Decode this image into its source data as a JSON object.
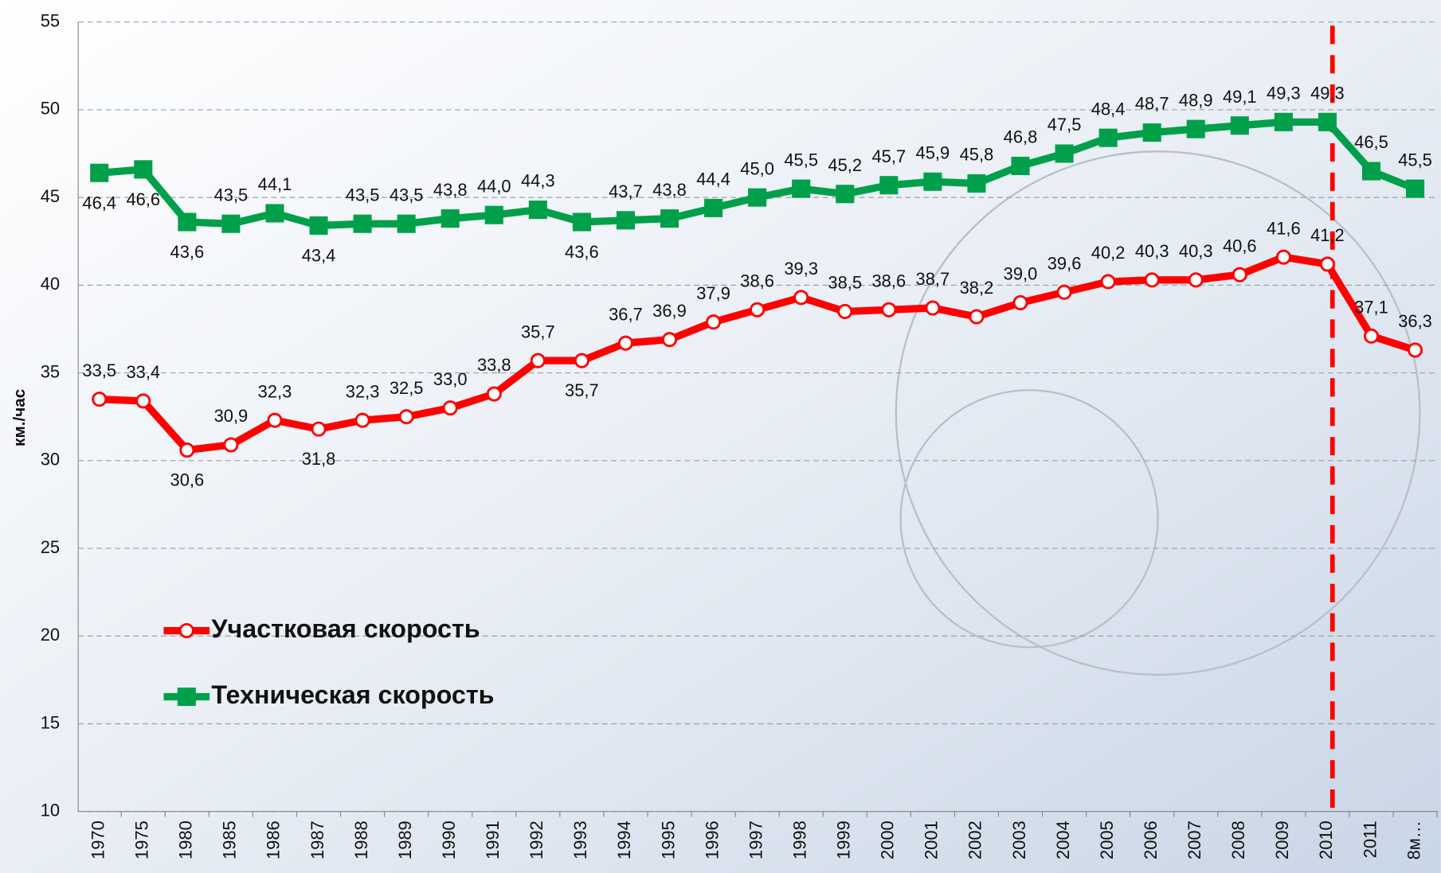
{
  "chart_data": {
    "type": "line",
    "y_label": "км./час",
    "categories": [
      "1970",
      "1975",
      "1980",
      "1985",
      "1986",
      "1987",
      "1988",
      "1989",
      "1990",
      "1991",
      "1992",
      "1993",
      "1994",
      "1995",
      "1996",
      "1997",
      "1998",
      "1999",
      "2000",
      "2001",
      "2002",
      "2003",
      "2004",
      "2005",
      "2006",
      "2007",
      "2008",
      "2009",
      "2010",
      "2011",
      "8м…"
    ],
    "series": [
      {
        "name": "Участковая скорость",
        "color": "#ff0000",
        "marker": "circle",
        "values": [
          33.5,
          33.4,
          30.6,
          30.9,
          32.3,
          31.8,
          32.3,
          32.5,
          33.0,
          33.8,
          35.7,
          35.7,
          36.7,
          36.9,
          37.9,
          38.6,
          39.3,
          38.5,
          38.6,
          38.7,
          38.2,
          39.0,
          39.6,
          40.2,
          40.3,
          40.3,
          40.6,
          41.6,
          41.2,
          37.1,
          36.3
        ],
        "value_labels": [
          "33,5",
          "33,4",
          "30,6",
          "30,9",
          "32,3",
          "31,8",
          "32,3",
          "32,5",
          "33,0",
          "33,8",
          "35,7",
          "35,7",
          "36,7",
          "36,9",
          "37,9",
          "38,6",
          "39,3",
          "38,5",
          "38,6",
          "38,7",
          "38,2",
          "39,0",
          "39,6",
          "40,2",
          "40,3",
          "40,3",
          "40,6",
          "41,6",
          "41,2",
          "37,1",
          "36,3"
        ]
      },
      {
        "name": "Техническая скорость",
        "color": "#00a04a",
        "marker": "square",
        "values": [
          46.4,
          46.6,
          43.6,
          43.5,
          44.1,
          43.4,
          43.5,
          43.5,
          43.8,
          44.0,
          44.3,
          43.6,
          43.7,
          43.8,
          44.4,
          45.0,
          45.5,
          45.2,
          45.7,
          45.9,
          45.8,
          46.8,
          47.5,
          48.4,
          48.7,
          48.9,
          49.1,
          49.3,
          49.3,
          46.5,
          45.5
        ],
        "value_labels": [
          "46,4",
          "46,6",
          "43,6",
          "43,5",
          "44,1",
          "43,4",
          "43,5",
          "43,5",
          "43,8",
          "44,0",
          "44,3",
          "43,6",
          "43,7",
          "43,8",
          "44,4",
          "45,0",
          "45,5",
          "45,2",
          "45,7",
          "45,9",
          "45,8",
          "46,8",
          "47,5",
          "48,4",
          "48,7",
          "48,9",
          "49,1",
          "49,3",
          "49,3",
          "46,5",
          "45,5"
        ]
      }
    ],
    "ylim": [
      10,
      55
    ],
    "yticks": [
      10,
      15,
      20,
      25,
      30,
      35,
      40,
      45,
      50,
      55
    ],
    "grid": true
  }
}
